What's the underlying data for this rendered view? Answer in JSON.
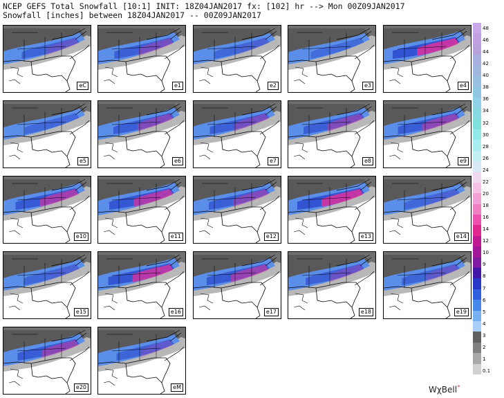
{
  "header": {
    "line1": "NCEP GEFS Total Snowfall [10:1] INIT: 18Z04JAN2017 fx: [102] hr --> Mon 00Z09JAN2017",
    "line2": "Snowfall [inches] between 18Z04JAN2017 -- 00Z09JAN2017"
  },
  "panels": [
    {
      "label": "eC",
      "intensity": 0.45
    },
    {
      "label": "e1",
      "intensity": 0.55
    },
    {
      "label": "e2",
      "intensity": 0.35
    },
    {
      "label": "e3",
      "intensity": 0.25
    },
    {
      "label": "e4",
      "intensity": 0.9
    },
    {
      "label": "e5",
      "intensity": 0.3
    },
    {
      "label": "e6",
      "intensity": 0.6
    },
    {
      "label": "e7",
      "intensity": 0.55
    },
    {
      "label": "e8",
      "intensity": 0.6
    },
    {
      "label": "e9",
      "intensity": 0.65
    },
    {
      "label": "e10",
      "intensity": 0.75
    },
    {
      "label": "e11",
      "intensity": 0.8
    },
    {
      "label": "e12",
      "intensity": 0.6
    },
    {
      "label": "e13",
      "intensity": 0.9
    },
    {
      "label": "e14",
      "intensity": 0.35
    },
    {
      "label": "e15",
      "intensity": 0.35
    },
    {
      "label": "e16",
      "intensity": 0.85
    },
    {
      "label": "e17",
      "intensity": 0.7
    },
    {
      "label": "e18",
      "intensity": 0.5
    },
    {
      "label": "e19",
      "intensity": 0.45
    },
    {
      "label": "e20",
      "intensity": 0.65
    },
    {
      "label": "eM",
      "intensity": 0.45
    }
  ],
  "colorbar": {
    "ticks": [
      "48",
      "46",
      "44",
      "42",
      "40",
      "38",
      "36",
      "34",
      "32",
      "30",
      "28",
      "26",
      "24",
      "22",
      "20",
      "18",
      "16",
      "14",
      "12",
      "10",
      "9",
      "8",
      "7",
      "6",
      "5",
      "4",
      "3",
      "2",
      "1",
      "0.1"
    ],
    "colors": [
      "#c8a8e8",
      "#c0a0e0",
      "#b8a0dc",
      "#a8b0e0",
      "#a0b8e0",
      "#98c0e0",
      "#90c8e4",
      "#90d0e8",
      "#88d8e0",
      "#80e0dc",
      "#90e8e8",
      "#a8eef0",
      "#c0f0f4",
      "#d8e8f4",
      "#f0d8ee",
      "#f4c0e4",
      "#f0a0d4",
      "#f080c4",
      "#ee50b0",
      "#e02890",
      "#c01890",
      "#a01898",
      "#801aa0",
      "#4018a8",
      "#2838c8",
      "#3060e0",
      "#4888ec",
      "#78b0f4",
      "#a8d0f8",
      "#606060",
      "#808080",
      "#a8a8a8",
      "#d0d0d0"
    ]
  },
  "logo": {
    "text": "WχBell",
    "mark": "°"
  }
}
